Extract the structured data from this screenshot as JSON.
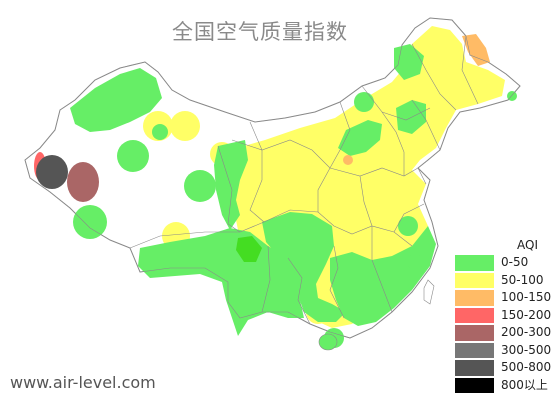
{
  "map": {
    "title": "全国空气质量指数",
    "site": "www.air-level.com"
  },
  "legend": {
    "title": "AQI",
    "items": [
      {
        "range": "0-50",
        "color": "#66ee66"
      },
      {
        "range": "50-100",
        "color": "#ffff66"
      },
      {
        "range": "100-150",
        "color": "#ffbb66"
      },
      {
        "range": "150-200",
        "color": "#ff6666"
      },
      {
        "range": "200-300",
        "color": "#aa6666"
      },
      {
        "range": "300-500",
        "color": "#777777"
      },
      {
        "range": "500-800",
        "color": "#555555"
      },
      {
        "range": "800以上",
        "color": "#000000"
      }
    ]
  },
  "colors": {
    "border": "#8a8a8a",
    "background": "#ffffff"
  }
}
